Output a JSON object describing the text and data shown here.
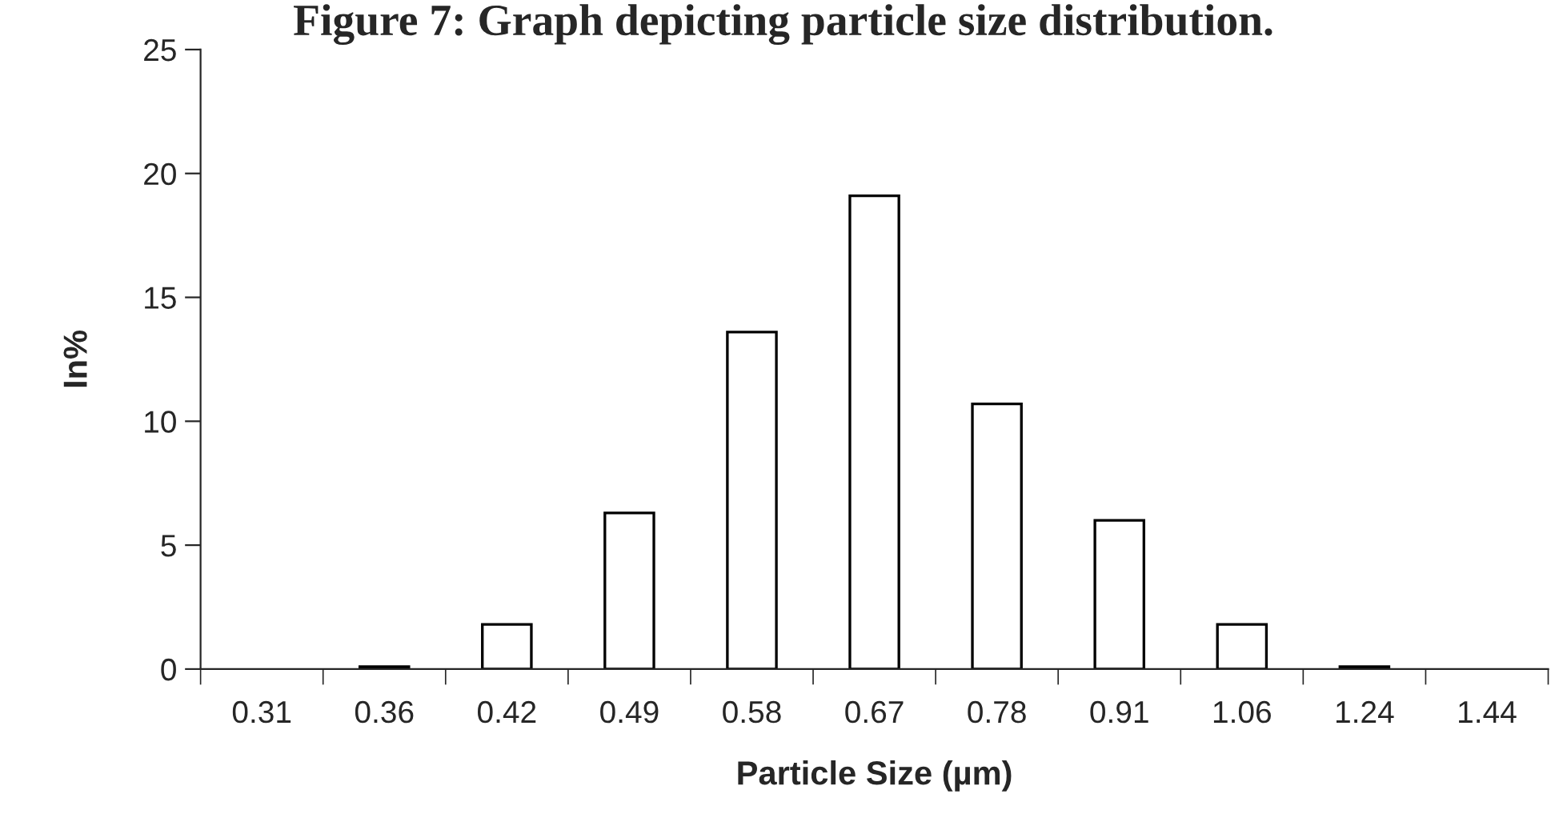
{
  "chart_data": {
    "type": "bar",
    "title": "Figure 7: Graph depicting particle size distribution.",
    "xlabel": "Particle Size (µm)",
    "ylabel": "In%",
    "categories": [
      "0.31",
      "0.36",
      "0.42",
      "0.49",
      "0.58",
      "0.67",
      "0.78",
      "0.91",
      "1.06",
      "1.24",
      "1.44"
    ],
    "values": [
      0,
      0.1,
      1.8,
      6.3,
      13.6,
      19.1,
      10.7,
      6.0,
      1.8,
      0.1,
      0
    ],
    "color": "#ffffff",
    "ylim": [
      0,
      25
    ],
    "yticks": [
      0,
      5,
      10,
      15,
      20,
      25
    ],
    "grid": false,
    "legend": false
  }
}
